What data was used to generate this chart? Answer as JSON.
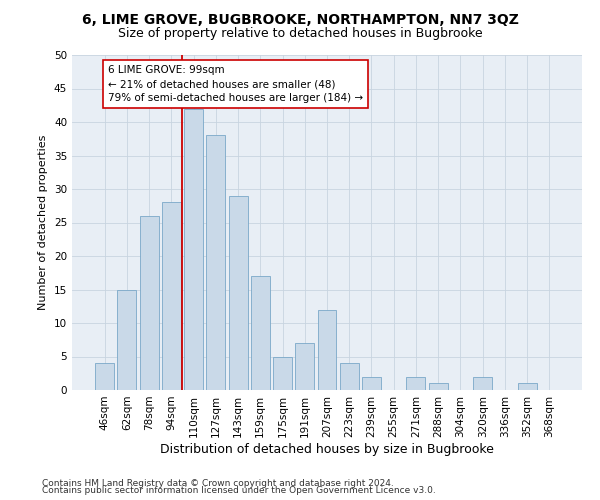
{
  "title": "6, LIME GROVE, BUGBROOKE, NORTHAMPTON, NN7 3QZ",
  "subtitle": "Size of property relative to detached houses in Bugbrooke",
  "xlabel": "Distribution of detached houses by size in Bugbrooke",
  "ylabel": "Number of detached properties",
  "categories": [
    "46sqm",
    "62sqm",
    "78sqm",
    "94sqm",
    "110sqm",
    "127sqm",
    "143sqm",
    "159sqm",
    "175sqm",
    "191sqm",
    "207sqm",
    "223sqm",
    "239sqm",
    "255sqm",
    "271sqm",
    "288sqm",
    "304sqm",
    "320sqm",
    "336sqm",
    "352sqm",
    "368sqm"
  ],
  "values": [
    4,
    15,
    26,
    28,
    42,
    38,
    29,
    17,
    5,
    7,
    12,
    4,
    2,
    0,
    2,
    1,
    0,
    2,
    0,
    1,
    0
  ],
  "bar_color": "#c9d9e8",
  "bar_edge_color": "#7aa8c8",
  "vline_x": 3.5,
  "vline_color": "#cc0000",
  "annotation_text": "6 LIME GROVE: 99sqm\n← 21% of detached houses are smaller (48)\n79% of semi-detached houses are larger (184) →",
  "annotation_box_color": "#ffffff",
  "annotation_box_edge": "#cc0000",
  "ylim": [
    0,
    50
  ],
  "yticks": [
    0,
    5,
    10,
    15,
    20,
    25,
    30,
    35,
    40,
    45,
    50
  ],
  "background_color": "#e8eef5",
  "footer_line1": "Contains HM Land Registry data © Crown copyright and database right 2024.",
  "footer_line2": "Contains public sector information licensed under the Open Government Licence v3.0.",
  "title_fontsize": 10,
  "subtitle_fontsize": 9,
  "xlabel_fontsize": 9,
  "ylabel_fontsize": 8,
  "tick_fontsize": 7.5
}
